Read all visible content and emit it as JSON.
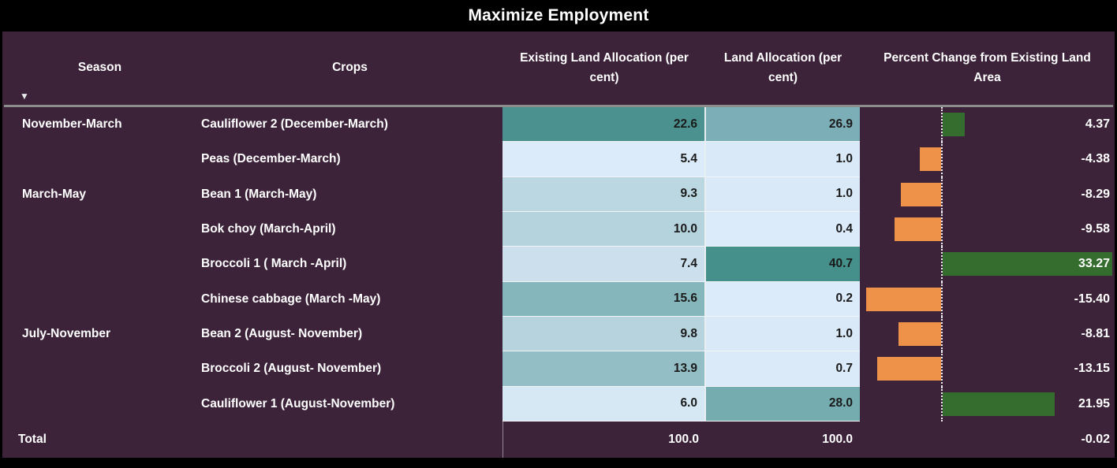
{
  "title": "Maximize Employment",
  "header": {
    "season": "Season",
    "crops": "Crops",
    "existing": "Existing Land Allocation (per cent)",
    "alloc": "Land Allocation (per cent)",
    "pct": "Percent Change from Existing Land Area",
    "sort_icon": "▼"
  },
  "colors": {
    "background": "#3C2339",
    "title_bar": "#000000",
    "positive_bar": "#346D2D",
    "negative_bar": "#EF9249",
    "header_text": "#FFFFFF",
    "cell_text": "#1A1A1A",
    "cell_scale_low": "#DCEBF9",
    "cell_scale_high": "#45908A"
  },
  "rows": [
    {
      "season": "November-March",
      "crop": "Cauliflower 2 (December-March)",
      "existing": "22.6",
      "existing_bg": "#4A9190",
      "alloc": "26.9",
      "alloc_bg": "#7BAEB6",
      "pct": "4.37",
      "pct_num": 4.37
    },
    {
      "season": "",
      "crop": "Peas (December-March)",
      "existing": "5.4",
      "existing_bg": "#DCEBF9",
      "alloc": "1.0",
      "alloc_bg": "#D9E9F7",
      "pct": "-4.38",
      "pct_num": -4.38
    },
    {
      "season": "March-May",
      "crop": "Bean 1 (March-May)",
      "existing": "9.3",
      "existing_bg": "#BBD7E1",
      "alloc": "1.0",
      "alloc_bg": "#D9E9F7",
      "pct": "-8.29",
      "pct_num": -8.29
    },
    {
      "season": "",
      "crop": "Bok choy (March-April)",
      "existing": "10.0",
      "existing_bg": "#B5D3DD",
      "alloc": "0.4",
      "alloc_bg": "#DBEBF9",
      "pct": "-9.58",
      "pct_num": -9.58
    },
    {
      "season": "",
      "crop": "Broccoli 1 ( March -April)",
      "existing": "7.4",
      "existing_bg": "#CBE0EC",
      "alloc": "40.7",
      "alloc_bg": "#45908A",
      "pct": "33.27",
      "pct_num": 33.27
    },
    {
      "season": "",
      "crop": "Chinese cabbage (March -May)",
      "existing": "15.6",
      "existing_bg": "#85B6BB",
      "alloc": "0.2",
      "alloc_bg": "#DCEBF9",
      "pct": "-15.40",
      "pct_num": -15.4
    },
    {
      "season": "July-November",
      "crop": "Bean 2 (August- November)",
      "existing": "9.8",
      "existing_bg": "#B7D4DE",
      "alloc": "1.0",
      "alloc_bg": "#D9E9F7",
      "pct": "-8.81",
      "pct_num": -8.81
    },
    {
      "season": "",
      "crop": "Broccoli 2 (August- November)",
      "existing": "13.9",
      "existing_bg": "#94BEC5",
      "alloc": "0.7",
      "alloc_bg": "#DAEAF8",
      "pct": "-13.15",
      "pct_num": -13.15
    },
    {
      "season": "",
      "crop": "Cauliflower 1 (August-November)",
      "existing": "6.0",
      "existing_bg": "#D7E8F5",
      "alloc": "28.0",
      "alloc_bg": "#74ACB0",
      "pct": "21.95",
      "pct_num": 21.95
    }
  ],
  "total": {
    "label": "Total",
    "existing": "100.0",
    "alloc": "100.0",
    "pct": "-0.02"
  },
  "chart_data": {
    "type": "table",
    "title": "Maximize Employment",
    "columns": [
      "Season",
      "Crops",
      "Existing Land Allocation (per cent)",
      "Land Allocation (per cent)",
      "Percent Change from Existing Land Area"
    ],
    "rows": [
      [
        "November-March",
        "Cauliflower 2 (December-March)",
        22.6,
        26.9,
        4.37
      ],
      [
        "",
        "Peas (December-March)",
        5.4,
        1.0,
        -4.38
      ],
      [
        "March-May",
        "Bean 1 (March-May)",
        9.3,
        1.0,
        -8.29
      ],
      [
        "",
        "Bok choy (March-April)",
        10.0,
        0.4,
        -9.58
      ],
      [
        "",
        "Broccoli 1 ( March -April)",
        7.4,
        40.7,
        33.27
      ],
      [
        "",
        "Chinese cabbage (March -May)",
        15.6,
        0.2,
        -15.4
      ],
      [
        "July-November",
        "Bean 2 (August- November)",
        9.8,
        1.0,
        -8.81
      ],
      [
        "",
        "Broccoli 2 (August- November)",
        13.9,
        0.7,
        -13.15
      ],
      [
        "",
        "Cauliflower 1 (August-November)",
        6.0,
        28.0,
        21.95
      ],
      [
        "Total",
        "",
        100.0,
        100.0,
        -0.02
      ]
    ],
    "notes": "Percent Change column rendered as diverging data bars around a dotted zero axis; positive bars green, negative bars orange. Existing/Land Allocation cells shaded light-blue (low) to teal (high).",
    "bar_colors": {
      "positive": "#346D2D",
      "negative": "#EF9249"
    }
  }
}
